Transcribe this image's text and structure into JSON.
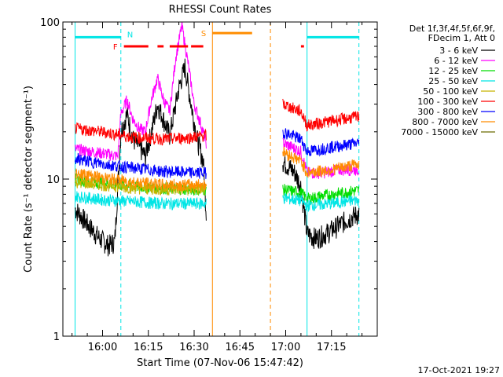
{
  "chart_data": {
    "type": "line",
    "title": "RHESSI Count Rates",
    "xlabel": "Start Time (07-Nov-06 15:47:42)",
    "ylabel": "Count Rate (s⁻¹ detector segment⁻¹)",
    "x_range": [
      "15:51",
      "17:27"
    ],
    "x_ticks": [
      "16:00",
      "16:15",
      "16:30",
      "16:45",
      "17:00",
      "17:15"
    ],
    "y_scale": "log",
    "ylim": [
      1,
      100
    ],
    "y_ticks": [
      "1",
      "10",
      "100"
    ],
    "legend_header": [
      "Det 1f,3f,4f,5f,6f,9f,",
      "FDecim 1, Att 0"
    ],
    "legend_position": "right",
    "footer_date": "17-Oct-2021 19:27",
    "series": [
      {
        "name": "3 - 6 keV",
        "color": "#000000",
        "data_gap": [
          "16:34",
          "16:59"
        ],
        "values": [
          [
            "15:51",
            6.5
          ],
          [
            "15:55",
            5.2
          ],
          [
            "15:59",
            4.2
          ],
          [
            "16:02",
            3.8
          ],
          [
            "16:04",
            4.0
          ],
          [
            "16:06",
            20
          ],
          [
            "16:08",
            26
          ],
          [
            "16:10",
            18
          ],
          [
            "16:12",
            16
          ],
          [
            "16:14",
            14
          ],
          [
            "16:16",
            20
          ],
          [
            "16:18",
            30
          ],
          [
            "16:20",
            24
          ],
          [
            "16:22",
            19
          ],
          [
            "16:25",
            38
          ],
          [
            "16:27",
            52
          ],
          [
            "16:29",
            30
          ],
          [
            "16:31",
            18
          ],
          [
            "16:33",
            13
          ],
          [
            "16:34",
            6
          ],
          [
            "16:59",
            13
          ],
          [
            "17:01",
            12
          ],
          [
            "17:03",
            11
          ],
          [
            "17:05",
            9
          ],
          [
            "17:07",
            4.5
          ],
          [
            "17:10",
            4.2
          ],
          [
            "17:14",
            4.6
          ],
          [
            "17:18",
            5.2
          ],
          [
            "17:22",
            5.8
          ],
          [
            "17:24",
            6.0
          ]
        ]
      },
      {
        "name": "6 - 12 keV",
        "color": "#ff00ff",
        "data_gap": [
          "16:34",
          "16:59"
        ],
        "values": [
          [
            "15:51",
            15.5
          ],
          [
            "15:56",
            15
          ],
          [
            "16:01",
            14.5
          ],
          [
            "16:05",
            14
          ],
          [
            "16:06",
            26
          ],
          [
            "16:08",
            32
          ],
          [
            "16:10",
            24
          ],
          [
            "16:12",
            21
          ],
          [
            "16:14",
            20
          ],
          [
            "16:16",
            32
          ],
          [
            "16:18",
            44
          ],
          [
            "16:20",
            32
          ],
          [
            "16:22",
            27
          ],
          [
            "16:24",
            60
          ],
          [
            "16:26",
            95
          ],
          [
            "16:28",
            55
          ],
          [
            "16:30",
            30
          ],
          [
            "16:32",
            23
          ],
          [
            "16:34",
            17
          ],
          [
            "16:59",
            17
          ],
          [
            "17:02",
            16
          ],
          [
            "17:05",
            15
          ],
          [
            "17:07",
            11
          ],
          [
            "17:12",
            11
          ],
          [
            "17:18",
            11.5
          ],
          [
            "17:24",
            11.5
          ]
        ]
      },
      {
        "name": "12 - 25 keV",
        "color": "#00dd00",
        "data_gap": [
          "16:34",
          "16:59"
        ],
        "values": [
          [
            "15:51",
            10
          ],
          [
            "16:00",
            9.5
          ],
          [
            "16:10",
            9
          ],
          [
            "16:20",
            8.8
          ],
          [
            "16:30",
            8.6
          ],
          [
            "16:34",
            8.6
          ],
          [
            "16:59",
            8.6
          ],
          [
            "17:05",
            8.2
          ],
          [
            "17:07",
            7.5
          ],
          [
            "17:15",
            8
          ],
          [
            "17:24",
            8.5
          ]
        ]
      },
      {
        "name": "25 - 50 keV",
        "color": "#00e5e5",
        "data_gap": [
          "16:34",
          "16:59"
        ],
        "values": [
          [
            "15:51",
            7.8
          ],
          [
            "16:00",
            7.4
          ],
          [
            "16:10",
            7.2
          ],
          [
            "16:20",
            7.0
          ],
          [
            "16:30",
            7.0
          ],
          [
            "16:34",
            7.0
          ],
          [
            "16:59",
            7.6
          ],
          [
            "17:05",
            7.3
          ],
          [
            "17:07",
            6.8
          ],
          [
            "17:15",
            7
          ],
          [
            "17:24",
            7.4
          ]
        ]
      },
      {
        "name": "50 - 100 keV",
        "color": "#c8b400",
        "data_gap": [
          "16:34",
          "16:59"
        ],
        "values": [
          [
            "15:51",
            9.6
          ],
          [
            "16:00",
            9.2
          ],
          [
            "16:10",
            8.8
          ],
          [
            "16:20",
            8.6
          ],
          [
            "16:30",
            8.6
          ],
          [
            "16:34",
            8.6
          ]
        ]
      },
      {
        "name": "100 - 300 keV",
        "color": "#ff0000",
        "data_gap": [
          "16:34",
          "16:59"
        ],
        "values": [
          [
            "15:51",
            21
          ],
          [
            "16:00",
            20
          ],
          [
            "16:10",
            18.5
          ],
          [
            "16:20",
            18
          ],
          [
            "16:30",
            18.5
          ],
          [
            "16:34",
            19
          ],
          [
            "16:59",
            30
          ],
          [
            "17:05",
            27
          ],
          [
            "17:07",
            22
          ],
          [
            "17:15",
            23.5
          ],
          [
            "17:24",
            25
          ]
        ]
      },
      {
        "name": "300 - 800 keV",
        "color": "#0000ff",
        "data_gap": [
          "16:34",
          "16:59"
        ],
        "values": [
          [
            "15:51",
            13.5
          ],
          [
            "16:00",
            12.5
          ],
          [
            "16:10",
            11.8
          ],
          [
            "16:20",
            11.2
          ],
          [
            "16:30",
            11
          ],
          [
            "16:34",
            11
          ],
          [
            "16:59",
            20
          ],
          [
            "17:05",
            18
          ],
          [
            "17:07",
            15
          ],
          [
            "17:15",
            16
          ],
          [
            "17:24",
            17
          ]
        ]
      },
      {
        "name": "800 - 7000 keV",
        "color": "#ff8c00",
        "data_gap": [
          "16:34",
          "16:59"
        ],
        "values": [
          [
            "15:51",
            11
          ],
          [
            "16:00",
            10.2
          ],
          [
            "16:10",
            9.6
          ],
          [
            "16:20",
            9.2
          ],
          [
            "16:30",
            9.2
          ],
          [
            "16:34",
            9.3
          ],
          [
            "16:59",
            15
          ],
          [
            "17:05",
            13
          ],
          [
            "17:07",
            11
          ],
          [
            "17:15",
            11.5
          ],
          [
            "17:24",
            12.5
          ]
        ]
      },
      {
        "name": "7000 - 15000 keV",
        "color": "#6b6b00",
        "values": []
      }
    ],
    "state_bars": {
      "N": {
        "color": "#00e5e5",
        "label": "N",
        "value": 80,
        "intervals": [
          [
            "15:51",
            "16:06"
          ],
          [
            "17:07",
            "17:24"
          ]
        ]
      },
      "F": {
        "color": "#ff0000",
        "label": "F",
        "value": 70,
        "intervals": [
          [
            "16:07",
            "16:15"
          ],
          [
            "16:18",
            "16:20"
          ],
          [
            "16:22",
            "16:28"
          ],
          [
            "16:29",
            "16:33"
          ],
          [
            "17:05",
            "17:06"
          ]
        ]
      },
      "S": {
        "color": "#ff8c00",
        "label": "S",
        "value": 85,
        "intervals": [
          [
            "16:36",
            "16:49"
          ]
        ]
      }
    },
    "vertical_markers": [
      {
        "time": "15:51",
        "color": "#00e5e5",
        "style": "solid"
      },
      {
        "time": "16:06",
        "color": "#00e5e5",
        "style": "dashed"
      },
      {
        "time": "16:36",
        "color": "#ff8c00",
        "style": "solid"
      },
      {
        "time": "16:55",
        "color": "#ff8c00",
        "style": "dashed"
      },
      {
        "time": "17:07",
        "color": "#00e5e5",
        "style": "solid"
      },
      {
        "time": "17:24",
        "color": "#00e5e5",
        "style": "dashed"
      }
    ]
  }
}
